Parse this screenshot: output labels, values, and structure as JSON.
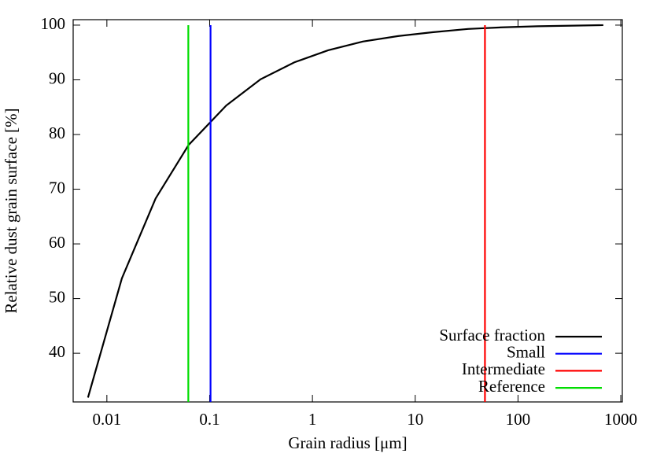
{
  "chart_data": {
    "type": "line",
    "xlabel": "Grain radius [μm]",
    "ylabel": "Relative dust grain surface [%]",
    "xscale": "log",
    "xlim": [
      0.0047,
      1035
    ],
    "ylim": [
      31.1,
      101
    ],
    "xticks": [
      0.01,
      0.1,
      1,
      10,
      100,
      1000
    ],
    "yticks": [
      40,
      50,
      60,
      70,
      80,
      90,
      100
    ],
    "legend": "lower right",
    "series": [
      {
        "name": "Surface fraction",
        "color": "#000000",
        "x": [
          0.00655,
          0.014,
          0.0298,
          0.0625,
          0.145,
          0.313,
          0.667,
          1.42,
          3.09,
          6.8,
          14.7,
          32.6,
          70,
          155,
          340,
          676
        ],
        "values": [
          31.9,
          53.7,
          68.3,
          78.1,
          85.3,
          90.1,
          93.2,
          95.4,
          97.0,
          98.0,
          98.7,
          99.3,
          99.6,
          99.8,
          99.9,
          100
        ]
      },
      {
        "name": "Small",
        "color": "#0000ff",
        "x": [
          0.102,
          0.102
        ],
        "values": [
          31.1,
          100
        ]
      },
      {
        "name": "Intermediate",
        "color": "#ff0000",
        "x": [
          47.7,
          47.7
        ],
        "values": [
          31.1,
          100
        ]
      },
      {
        "name": "Reference",
        "color": "#00dd00",
        "x": [
          0.062,
          0.062
        ],
        "values": [
          31.1,
          100
        ]
      }
    ]
  }
}
